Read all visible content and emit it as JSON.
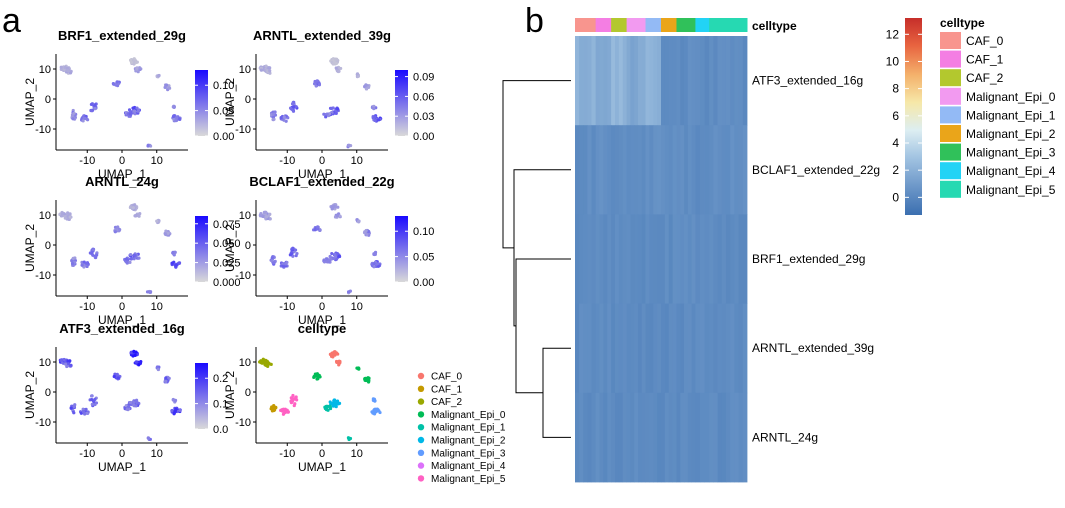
{
  "panel_labels": {
    "a": "a",
    "b": "b"
  },
  "umap_axis": {
    "xlabel": "UMAP_1",
    "ylabel": "UMAP_2",
    "xticks": [
      -10,
      0,
      10
    ],
    "yticks": [
      10,
      0,
      -10
    ],
    "xlim": [
      -19,
      19
    ],
    "ylim": [
      -17,
      15
    ]
  },
  "colors": {
    "low": "#d9d9d9",
    "high": "#1a0aff",
    "point_bg": "#d3d3d3",
    "celltypes_a": [
      "#f8766d",
      "#c49a00",
      "#99a800",
      "#00bc56",
      "#00c1a7",
      "#00b8e7",
      "#619cff",
      "#dc71fa",
      "#ff61c3"
    ],
    "celltypes_b": [
      "#f8958e",
      "#f47ee3",
      "#b3c82e",
      "#f29af0",
      "#93baf5",
      "#eaa51a",
      "#30c15a",
      "#22d3f5",
      "#26d9b2"
    ],
    "heat_scale": [
      "#3b6fb0",
      "#6b96c8",
      "#a5c6e3",
      "#ddeef2",
      "#f6e8a9",
      "#f4b26c",
      "#e86440",
      "#c62e2a"
    ]
  },
  "chart_data": [
    {
      "type": "scatter",
      "title": "BRF1_extended_29g",
      "legend_ticks": [
        "0.10",
        "0.05",
        "0.00"
      ],
      "color_range": [
        0,
        0.13
      ]
    },
    {
      "type": "scatter",
      "title": "ARNTL_extended_39g",
      "legend_ticks": [
        "0.09",
        "0.06",
        "0.03",
        "0.00"
      ],
      "color_range": [
        0,
        0.1
      ]
    },
    {
      "type": "scatter",
      "title": "ARNTL_24g",
      "legend_ticks": [
        "0.075",
        "0.050",
        "0.025",
        "0.000"
      ],
      "color_range": [
        0,
        0.085
      ]
    },
    {
      "type": "scatter",
      "title": "BCLAF1_extended_22g",
      "legend_ticks": [
        "0.10",
        "0.05",
        "0.00"
      ],
      "color_range": [
        0,
        0.13
      ]
    },
    {
      "type": "scatter",
      "title": "ATF3_extended_16g",
      "legend_ticks": [
        "0.2",
        "0.1",
        "0.0"
      ],
      "color_range": [
        0,
        0.26
      ]
    },
    {
      "type": "scatter",
      "title": "celltype",
      "legend": [
        "CAF_0",
        "CAF_1",
        "CAF_2",
        "Malignant_Epi_0",
        "Malignant_Epi_1",
        "Malignant_Epi_2",
        "Malignant_Epi_3",
        "Malignant_Epi_4",
        "Malignant_Epi_5"
      ]
    },
    {
      "type": "heatmap",
      "annotation_title": "celltype",
      "rows": [
        "ATF3_extended_16g",
        "BCLAF1_extended_22g",
        "BRF1_extended_29g",
        "ARNTL_extended_39g",
        "ARNTL_24g"
      ],
      "column_groups": [
        "CAF_0",
        "CAF_1",
        "CAF_2",
        "Malignant_Epi_0",
        "Malignant_Epi_1",
        "Malignant_Epi_2",
        "Malignant_Epi_3",
        "Malignant_Epi_4",
        "Malignant_Epi_5"
      ],
      "column_group_fraction": [
        0.12,
        0.09,
        0.09,
        0.11,
        0.09,
        0.09,
        0.11,
        0.08,
        0.22
      ],
      "row_group_mean": [
        [
          1.9,
          1.6,
          2.1,
          1.5,
          2.0,
          0.3,
          0.25,
          0.2,
          0.25
        ],
        [
          0.3,
          0.35,
          0.3,
          0.3,
          0.4,
          0.3,
          0.3,
          0.3,
          0.35
        ],
        [
          0.25,
          0.25,
          0.25,
          0.25,
          0.25,
          0.25,
          0.25,
          0.25,
          0.25
        ],
        [
          0.2,
          0.2,
          0.2,
          0.2,
          0.2,
          0.2,
          0.2,
          0.2,
          0.2
        ],
        [
          0.2,
          0.2,
          0.2,
          0.2,
          0.2,
          0.2,
          0.2,
          0.2,
          0.2
        ]
      ],
      "legend_title": "celltype",
      "color_scale_ticks": [
        "12",
        "10",
        "8",
        "6",
        "4",
        "2",
        "0"
      ],
      "color_scale_range": [
        -1.3,
        13.2
      ]
    }
  ]
}
